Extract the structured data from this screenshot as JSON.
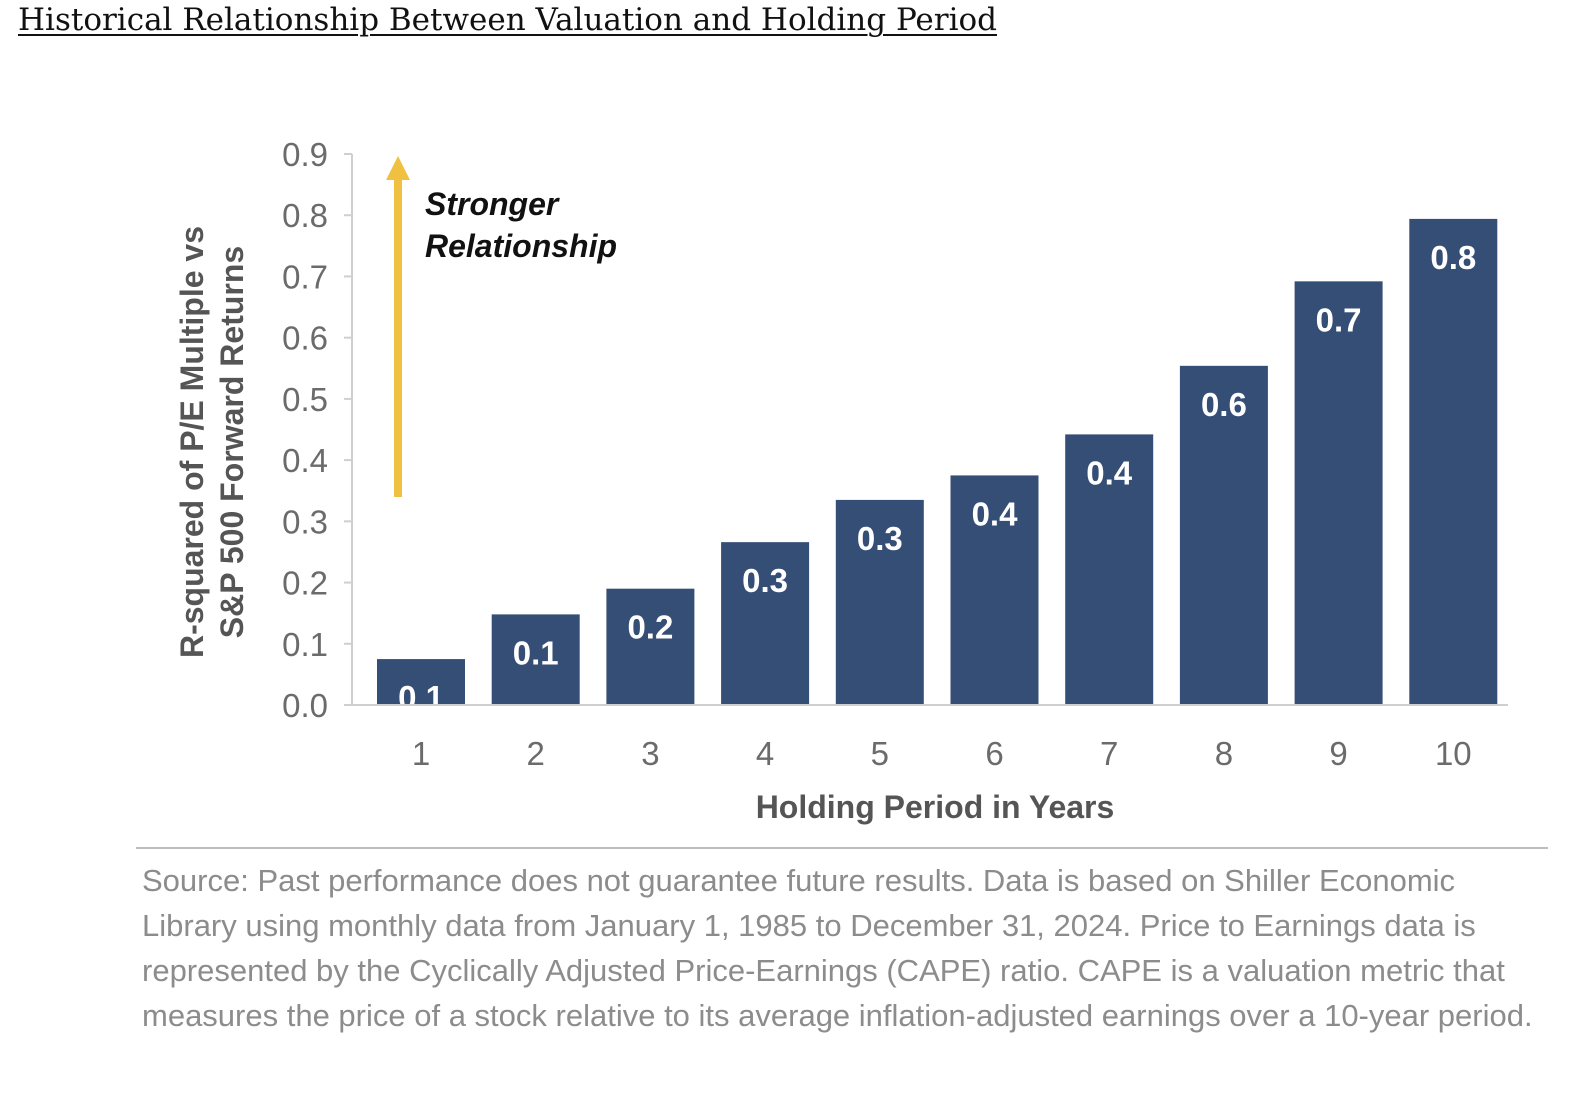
{
  "page_title": "Historical Relationship Between Valuation and Holding Period",
  "annotation": {
    "line1": "Stronger",
    "line2": "Relationship"
  },
  "source": "Source: Past performance does not guarantee future results. Data is based on Shiller Economic Library using monthly data from January 1, 1985 to December 31, 2024. Price to Earnings data is represented by the Cyclically Adjusted Price-Earnings (CAPE) ratio. CAPE is a valuation metric that measures the price of a stock relative to its average inflation-adjusted earnings over a 10-year period.",
  "colors": {
    "bar": "#354e76",
    "arrow": "#f0c140",
    "axis": "#cfcfcf"
  },
  "chart_data": {
    "type": "bar",
    "title": "",
    "xlabel": "Holding Period in Years",
    "ylabel_lines": [
      "R-squared of P/E Multiple vs",
      "S&P 500 Forward Returns"
    ],
    "categories": [
      "1",
      "2",
      "3",
      "4",
      "5",
      "6",
      "7",
      "8",
      "9",
      "10"
    ],
    "values": [
      0.075,
      0.148,
      0.19,
      0.266,
      0.335,
      0.375,
      0.442,
      0.554,
      0.692,
      0.794
    ],
    "data_labels": [
      "0.1",
      "0.1",
      "0.2",
      "0.3",
      "0.3",
      "0.4",
      "0.4",
      "0.6",
      "0.7",
      "0.8"
    ],
    "yticks": [
      "0.0",
      "0.1",
      "0.2",
      "0.3",
      "0.4",
      "0.5",
      "0.6",
      "0.7",
      "0.8",
      "0.9"
    ],
    "ylim": [
      0,
      0.9
    ],
    "grid": false,
    "legend": "none"
  }
}
